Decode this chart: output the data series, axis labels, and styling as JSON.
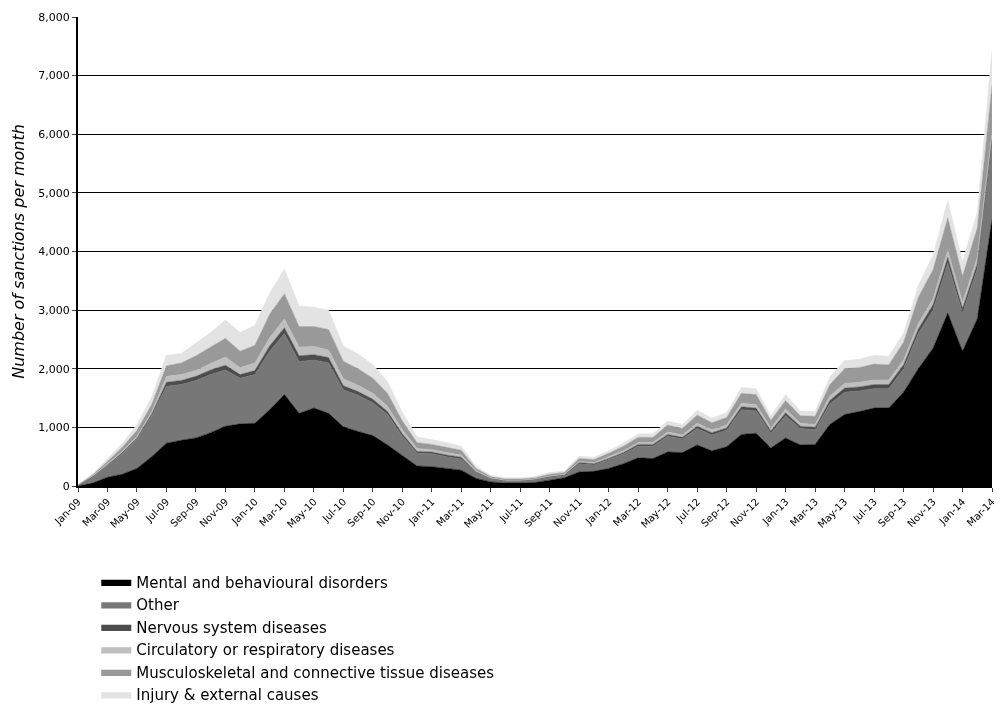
{
  "chart_data": {
    "type": "area",
    "stacked": true,
    "ylabel": "Number of sanctions per month",
    "categories": [
      "Jan-09",
      null,
      "Mar-09",
      null,
      "May-09",
      null,
      "Jul-09",
      null,
      "Sep-09",
      null,
      "Nov-09",
      null,
      "Jan-10",
      null,
      "Mar-10",
      null,
      "May-10",
      null,
      "Jul-10",
      null,
      "Sep-10",
      null,
      "Nov-10",
      null,
      "Jan-11",
      null,
      "Mar-11",
      null,
      "May-11",
      null,
      "Jul-11",
      null,
      "Sep-11",
      null,
      "Nov-11",
      null,
      "Jan-12",
      null,
      "Mar-12",
      null,
      "May-12",
      null,
      "Jul-12",
      null,
      "Sep-12",
      null,
      "Nov-12",
      null,
      "Jan-13",
      null,
      "Mar-13",
      null,
      "May-13",
      null,
      "Jul-13",
      null,
      "Sep-13",
      null,
      "Nov-13",
      null,
      "Jan-14",
      null,
      "Mar-14"
    ],
    "series": [
      {
        "name": "Mental and behavioural disorders",
        "color": "#000000",
        "values": [
          0,
          50,
          150,
          200,
          300,
          500,
          730,
          780,
          820,
          910,
          1020,
          1060,
          1070,
          1300,
          1560,
          1240,
          1330,
          1240,
          1010,
          930,
          860,
          700,
          520,
          340,
          330,
          300,
          270,
          130,
          70,
          50,
          50,
          60,
          100,
          140,
          240,
          250,
          300,
          380,
          480,
          470,
          580,
          570,
          700,
          600,
          670,
          880,
          900,
          650,
          820,
          700,
          710,
          1050,
          1220,
          1270,
          1330,
          1330,
          1600,
          2000,
          2350,
          2950,
          2300,
          2850,
          4550
        ]
      },
      {
        "name": "Other",
        "color": "#777777",
        "values": [
          20,
          100,
          200,
          350,
          500,
          700,
          970,
          950,
          980,
          990,
          960,
          780,
          830,
          1000,
          1040,
          880,
          820,
          860,
          630,
          620,
          560,
          520,
          330,
          220,
          220,
          200,
          190,
          90,
          50,
          30,
          30,
          40,
          50,
          40,
          140,
          110,
          150,
          170,
          200,
          210,
          270,
          230,
          280,
          270,
          280,
          420,
          380,
          250,
          380,
          280,
          250,
          350,
          380,
          350,
          330,
          330,
          400,
          600,
          650,
          850,
          650,
          850,
          1290
        ]
      },
      {
        "name": "Nervous system diseases",
        "color": "#4d4d4d",
        "values": [
          0,
          10,
          10,
          20,
          20,
          30,
          70,
          70,
          70,
          80,
          80,
          60,
          70,
          90,
          100,
          100,
          90,
          90,
          70,
          60,
          60,
          50,
          40,
          30,
          30,
          30,
          30,
          20,
          10,
          10,
          10,
          10,
          10,
          10,
          20,
          20,
          20,
          20,
          30,
          30,
          30,
          30,
          40,
          40,
          40,
          50,
          50,
          40,
          50,
          40,
          40,
          60,
          70,
          70,
          70,
          70,
          70,
          80,
          90,
          100,
          80,
          90,
          90
        ]
      },
      {
        "name": "Circulatory or respiratory diseases",
        "color": "#bfbfbf",
        "values": [
          0,
          10,
          20,
          20,
          30,
          40,
          100,
          100,
          100,
          110,
          140,
          120,
          130,
          140,
          150,
          150,
          140,
          130,
          120,
          110,
          100,
          90,
          70,
          50,
          40,
          40,
          40,
          20,
          10,
          10,
          10,
          10,
          10,
          10,
          20,
          20,
          30,
          30,
          30,
          30,
          40,
          40,
          50,
          50,
          50,
          60,
          60,
          50,
          60,
          50,
          50,
          70,
          80,
          80,
          80,
          80,
          80,
          90,
          100,
          120,
          100,
          110,
          100
        ]
      },
      {
        "name": "Musculoskeletal and connective tissue diseases",
        "color": "#999999",
        "values": [
          0,
          20,
          40,
          70,
          100,
          120,
          180,
          200,
          250,
          280,
          320,
          280,
          300,
          400,
          430,
          350,
          340,
          350,
          300,
          280,
          260,
          220,
          150,
          100,
          90,
          90,
          80,
          40,
          20,
          20,
          20,
          20,
          30,
          30,
          50,
          50,
          60,
          80,
          90,
          90,
          120,
          110,
          140,
          120,
          130,
          170,
          170,
          130,
          150,
          130,
          140,
          200,
          250,
          250,
          270,
          260,
          300,
          450,
          500,
          550,
          450,
          500,
          800
        ]
      },
      {
        "name": "Injury & external causes",
        "color": "#e3e3e3",
        "values": [
          0,
          20,
          50,
          70,
          100,
          130,
          180,
          160,
          220,
          250,
          310,
          320,
          340,
          360,
          420,
          350,
          330,
          330,
          260,
          250,
          230,
          200,
          150,
          100,
          80,
          80,
          70,
          40,
          20,
          20,
          20,
          20,
          30,
          30,
          40,
          40,
          40,
          50,
          60,
          60,
          70,
          70,
          80,
          80,
          80,
          100,
          100,
          80,
          100,
          80,
          80,
          130,
          140,
          140,
          150,
          140,
          160,
          200,
          250,
          300,
          250,
          270,
          600
        ]
      }
    ],
    "ylim": [
      0,
      8000
    ],
    "yticks": [
      0,
      {
        "value": 1000,
        "label": "1,000"
      },
      {
        "value": 2000,
        "label": "2,000"
      },
      {
        "value": 3000,
        "label": "3,000"
      },
      {
        "value": 4000,
        "label": "4,000"
      },
      {
        "value": 5000,
        "label": "5,000"
      },
      {
        "value": 6000,
        "label": "6,000"
      },
      {
        "value": 7000,
        "label": "7,000"
      },
      {
        "value": 8000,
        "label": "8,000"
      }
    ],
    "grid": "y",
    "legend": "bottom"
  }
}
